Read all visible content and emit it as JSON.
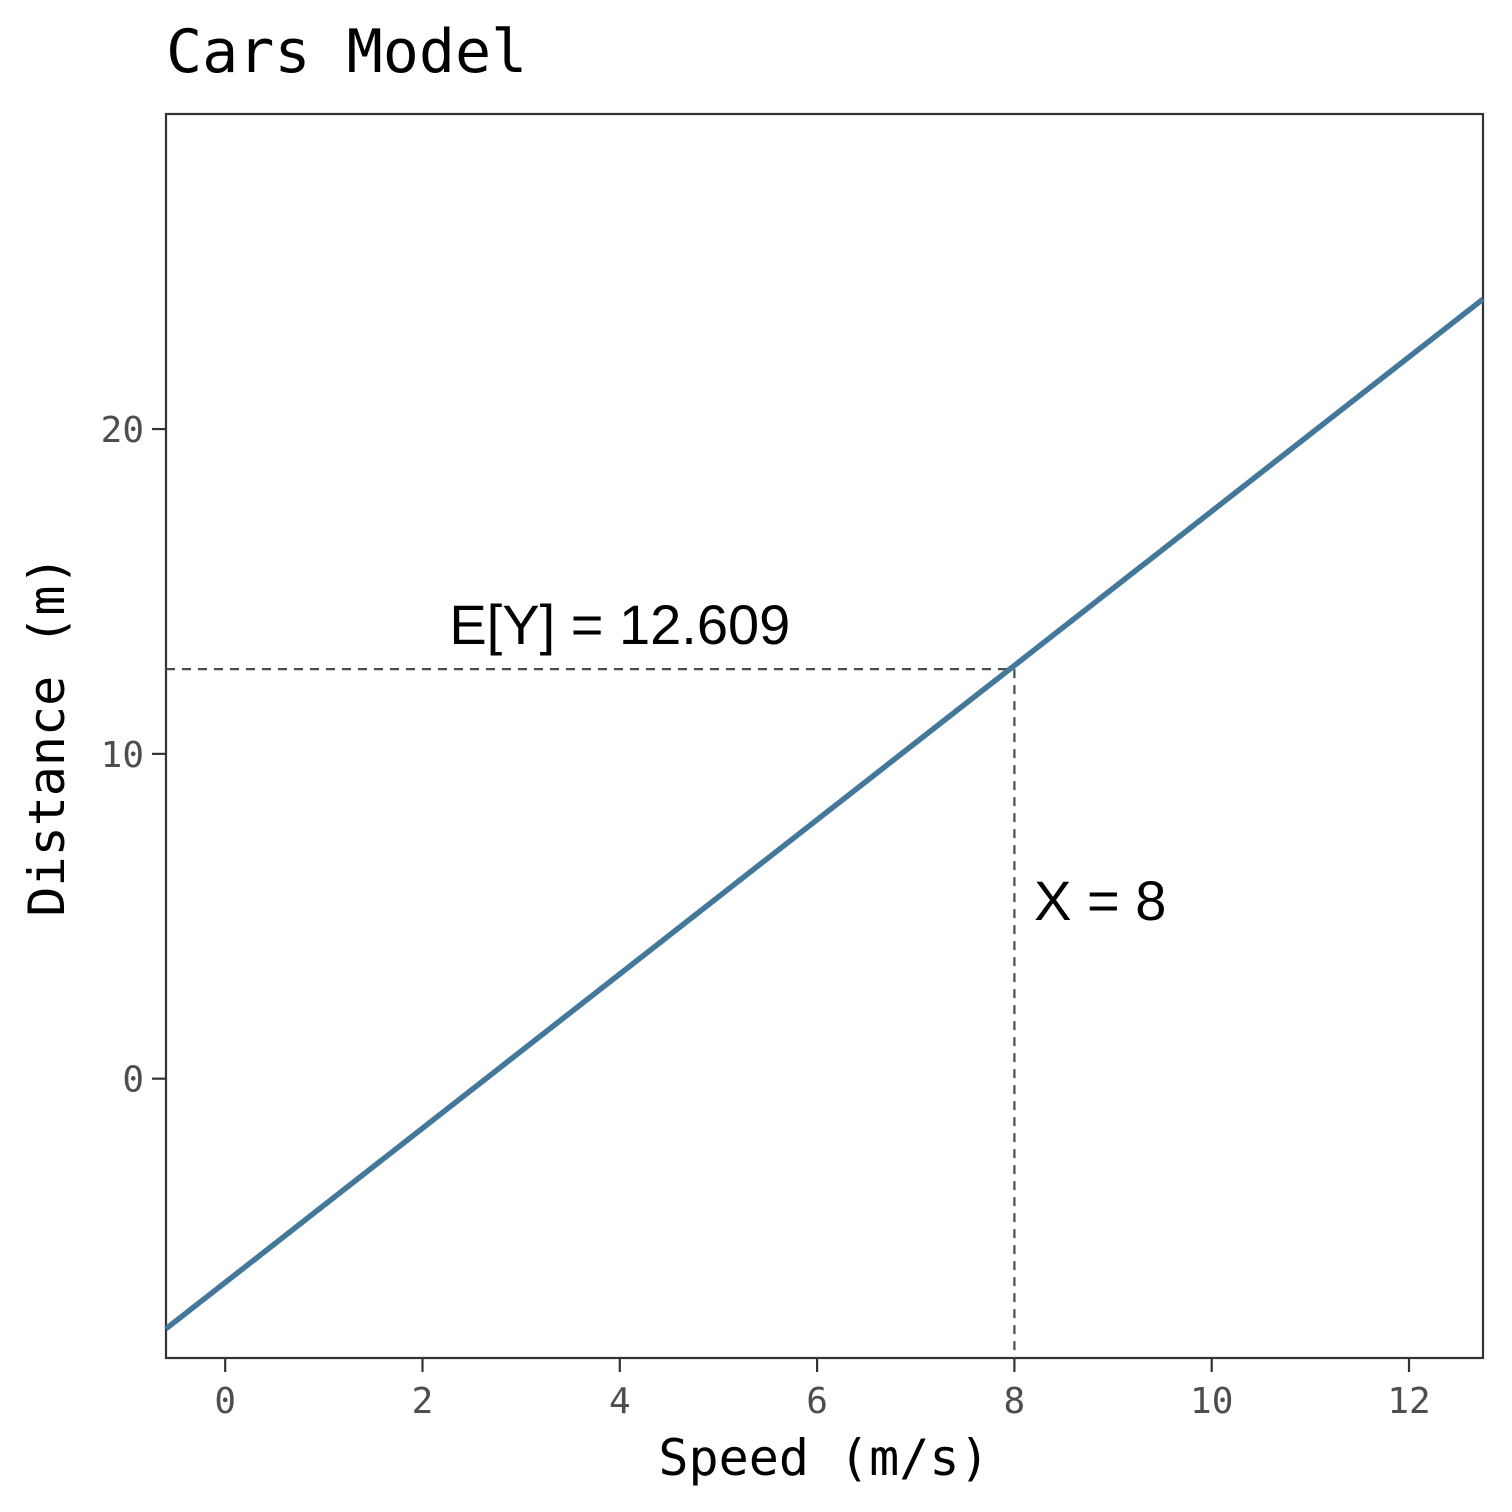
{
  "chart_data": {
    "type": "line",
    "title": "Cars Model",
    "xlabel": "Speed (m/s)",
    "ylabel": "Distance (m)",
    "xlim": [
      -0.6,
      12.75
    ],
    "ylim": [
      -8.6,
      29.7
    ],
    "x_ticks": [
      0,
      2,
      4,
      6,
      8,
      10,
      12
    ],
    "y_ticks": [
      0,
      10,
      20
    ],
    "grid": false,
    "series": [
      {
        "x": [
          -0.6,
          12.75
        ],
        "y": [
          -7.7,
          24.0
        ],
        "color": "#44789a"
      }
    ],
    "annotations": [
      {
        "text": "E[Y] = 12.609",
        "x": 4.0,
        "y": 14.0
      },
      {
        "text": "X = 8",
        "x": 8.2,
        "y": 5.5
      }
    ],
    "reference_lines": {
      "x": 8,
      "y": 12.609,
      "style": "dashed",
      "color": "#4d4d4d"
    }
  }
}
